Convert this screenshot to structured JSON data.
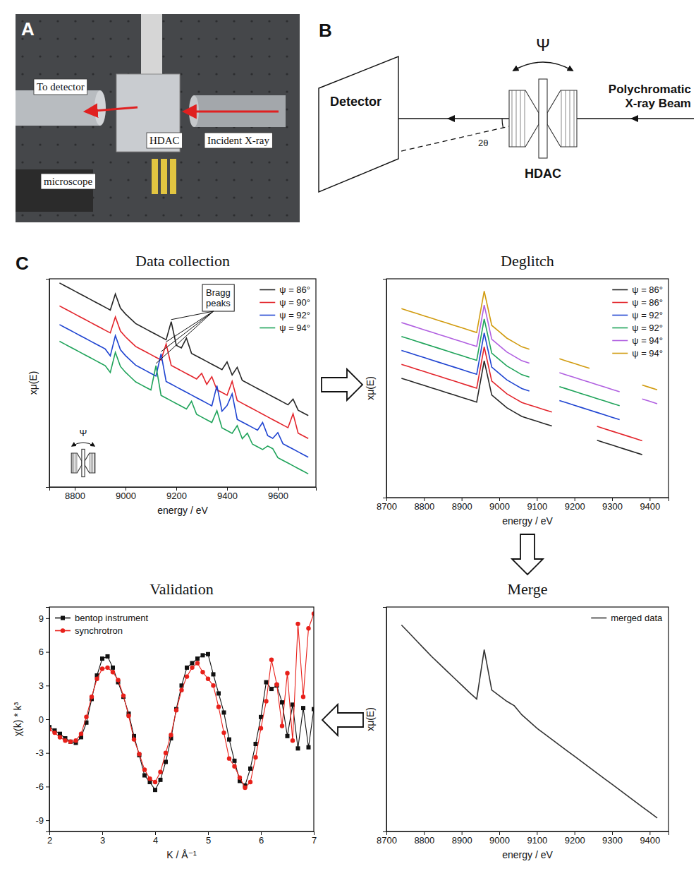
{
  "panel_a": {
    "letter": "A",
    "labels": [
      "To detector",
      "HDAC",
      "Incident X-ray",
      "microscope"
    ]
  },
  "panel_b": {
    "letter": "B",
    "detector": "Detector",
    "beam": "Polychromatic X-ray Beam",
    "cell": "HDAC",
    "rotation": "Ψ",
    "scattering_angle": "2θ"
  },
  "panel_c": {
    "letter": "C"
  },
  "chart_data": [
    {
      "type": "line",
      "title": "Data collection",
      "x_label": "energy / eV",
      "y_label": "xμ(E)",
      "x": [
        8740,
        8760,
        8780,
        8800,
        8820,
        8840,
        8860,
        8880,
        8900,
        8920,
        8940,
        8960,
        8980,
        9000,
        9020,
        9040,
        9060,
        9080,
        9100,
        9120,
        9140,
        9160,
        9180,
        9200,
        9220,
        9240,
        9260,
        9280,
        9300,
        9320,
        9340,
        9360,
        9380,
        9400,
        9420,
        9440,
        9460,
        9480,
        9500,
        9520,
        9540,
        9560,
        9580,
        9600,
        9620,
        9640,
        9660,
        9680,
        9700,
        9720
      ],
      "xlim": [
        8700,
        9750
      ],
      "xticks": [
        8800,
        9000,
        9200,
        9400,
        9600
      ],
      "ylim": [
        0,
        10
      ],
      "tick_labels": "x",
      "grid": false,
      "legend": "upper right",
      "annotations": [
        "Bragg peaks",
        "Ψ"
      ],
      "series": [
        {
          "name": "ψ = 86°",
          "color": "#262626",
          "values": [
            9.8,
            9.67,
            9.54,
            9.41,
            9.28,
            9.15,
            9.02,
            8.89,
            8.76,
            8.63,
            8.5,
            9.27,
            8.59,
            8.31,
            8.08,
            7.85,
            7.72,
            7.59,
            7.46,
            7.33,
            7.2,
            7.07,
            7.94,
            6.81,
            6.68,
            7.15,
            6.42,
            6.29,
            6.16,
            6.03,
            5.9,
            5.77,
            5.64,
            6.01,
            5.38,
            5.75,
            5.12,
            4.99,
            4.86,
            4.73,
            4.6,
            4.47,
            4.34,
            4.21,
            4.08,
            3.95,
            4.22,
            3.69,
            3.56,
            3.43
          ]
        },
        {
          "name": "ψ = 90°",
          "color": "#e3242b",
          "values": [
            8.7,
            8.57,
            8.44,
            8.31,
            8.18,
            8.05,
            7.92,
            7.79,
            7.66,
            7.53,
            7.4,
            8.17,
            7.49,
            7.21,
            6.98,
            6.75,
            6.62,
            6.49,
            6.36,
            6.23,
            6.1,
            6.87,
            5.84,
            5.71,
            5.58,
            5.45,
            5.32,
            5.19,
            5.46,
            4.93,
            5.3,
            4.67,
            4.54,
            4.41,
            5.08,
            4.15,
            4.02,
            3.89,
            3.76,
            3.63,
            3.5,
            3.37,
            3.24,
            3.11,
            2.98,
            2.85,
            3.52,
            2.59,
            2.46,
            2.33
          ]
        },
        {
          "name": "ψ = 92°",
          "color": "#1f44d1",
          "values": [
            7.8,
            7.67,
            7.54,
            7.41,
            7.28,
            7.15,
            7.02,
            6.89,
            6.76,
            6.63,
            6.3,
            7.27,
            6.59,
            6.31,
            6.08,
            5.85,
            5.72,
            5.59,
            5.46,
            5.33,
            6.4,
            5.07,
            4.94,
            4.81,
            4.68,
            4.55,
            4.42,
            4.29,
            4.16,
            4.03,
            3.9,
            4.87,
            3.64,
            3.91,
            4.48,
            3.25,
            3.12,
            2.99,
            2.86,
            2.73,
            3.1,
            2.47,
            2.34,
            2.61,
            2.08,
            1.95,
            1.82,
            1.69,
            1.56,
            1.43
          ]
        },
        {
          "name": "ψ = 94°",
          "color": "#1fa35a",
          "values": [
            7.0,
            6.87,
            6.74,
            6.61,
            6.48,
            6.35,
            6.22,
            6.09,
            5.96,
            5.83,
            5.5,
            6.47,
            5.79,
            5.51,
            5.28,
            5.05,
            4.92,
            4.79,
            4.66,
            5.83,
            4.4,
            4.27,
            4.14,
            4.01,
            3.88,
            3.75,
            4.12,
            3.49,
            3.36,
            3.23,
            3.1,
            3.67,
            2.84,
            2.71,
            2.58,
            2.95,
            2.32,
            2.59,
            2.06,
            1.93,
            1.8,
            1.97,
            1.84,
            1.41,
            1.28,
            1.15,
            1.02,
            0.89,
            0.76,
            0.63
          ]
        }
      ]
    },
    {
      "type": "line",
      "title": "Deglitch",
      "x_label": "energy / eV",
      "y_label": "xμ(E)",
      "x": [
        8740,
        8760,
        8780,
        8800,
        8820,
        8840,
        8860,
        8880,
        8900,
        8920,
        8940,
        8960,
        8980,
        9000,
        9020,
        9040,
        9060,
        9080,
        9100,
        9120,
        9140,
        9160,
        9180,
        9200,
        9220,
        9240,
        9260,
        9280,
        9300,
        9320,
        9340,
        9360,
        9380,
        9400,
        9420
      ],
      "xlim": [
        8700,
        9450
      ],
      "xticks": [
        8700,
        8800,
        8900,
        9000,
        9100,
        9200,
        9300,
        9400
      ],
      "ylim": [
        0,
        11
      ],
      "tick_labels": "x",
      "grid": false,
      "legend": "upper right",
      "series": [
        {
          "name": "ψ = 86°",
          "color": "#262626",
          "values": [
            6.0,
            5.88,
            5.76,
            5.64,
            5.52,
            5.4,
            5.28,
            5.16,
            5.04,
            4.92,
            4.8,
            6.88,
            5.16,
            4.84,
            4.52,
            4.3,
            4.08,
            3.96,
            3.84,
            3.72,
            3.6,
            null,
            null,
            null,
            null,
            null,
            2.88,
            2.76,
            2.64,
            2.52,
            2.4,
            2.28,
            2.16,
            null,
            null
          ]
        },
        {
          "name": "ψ = 86°",
          "color": "#e3242b",
          "values": [
            6.7,
            6.58,
            6.46,
            6.34,
            6.22,
            6.1,
            5.98,
            5.86,
            5.74,
            5.62,
            5.5,
            7.58,
            5.86,
            5.54,
            5.22,
            5.0,
            4.78,
            4.66,
            4.54,
            4.42,
            4.3,
            null,
            null,
            null,
            null,
            null,
            3.58,
            3.46,
            3.34,
            3.22,
            3.1,
            2.98,
            2.86,
            null,
            null
          ]
        },
        {
          "name": "ψ = 92°",
          "color": "#1f44d1",
          "values": [
            7.4,
            7.28,
            7.16,
            7.04,
            6.92,
            6.8,
            6.68,
            6.56,
            6.44,
            6.32,
            6.2,
            8.28,
            6.56,
            6.24,
            5.92,
            5.7,
            5.48,
            5.36,
            null,
            null,
            null,
            4.88,
            4.76,
            4.64,
            4.52,
            4.4,
            4.28,
            4.16,
            4.04,
            3.92,
            null,
            null,
            null,
            null,
            null
          ]
        },
        {
          "name": "ψ = 92°",
          "color": "#1fa35a",
          "values": [
            8.1,
            7.98,
            7.86,
            7.74,
            7.62,
            7.5,
            7.38,
            7.26,
            7.14,
            7.02,
            6.9,
            8.98,
            7.26,
            6.94,
            6.62,
            6.4,
            6.18,
            6.06,
            null,
            null,
            null,
            5.58,
            5.46,
            5.34,
            5.22,
            5.1,
            4.98,
            4.86,
            4.74,
            4.62,
            null,
            null,
            null,
            null,
            null
          ]
        },
        {
          "name": "ψ = 94°",
          "color": "#b05fe0",
          "values": [
            8.8,
            8.68,
            8.56,
            8.44,
            8.32,
            8.2,
            8.08,
            7.96,
            7.84,
            7.72,
            7.6,
            9.68,
            7.96,
            7.64,
            7.32,
            7.1,
            6.88,
            6.76,
            null,
            null,
            null,
            6.28,
            6.16,
            6.04,
            5.92,
            5.8,
            5.68,
            5.56,
            5.44,
            5.32,
            null,
            null,
            4.96,
            4.84,
            4.72
          ]
        },
        {
          "name": "ψ = 94°",
          "color": "#d19b0f",
          "values": [
            9.5,
            9.38,
            9.26,
            9.14,
            9.02,
            8.9,
            8.78,
            8.66,
            8.54,
            8.42,
            8.3,
            10.38,
            8.66,
            8.34,
            8.02,
            7.8,
            7.58,
            7.46,
            null,
            null,
            null,
            6.98,
            6.86,
            6.74,
            6.62,
            6.5,
            null,
            null,
            null,
            null,
            null,
            null,
            5.66,
            5.54,
            5.42
          ]
        }
      ]
    },
    {
      "type": "line",
      "title": "Merge",
      "x_label": "energy / eV",
      "y_label": "xμ(E)",
      "x": [
        8740,
        8760,
        8780,
        8800,
        8820,
        8840,
        8860,
        8880,
        8900,
        8920,
        8940,
        8960,
        8980,
        9000,
        9020,
        9040,
        9060,
        9080,
        9100,
        9120,
        9140,
        9160,
        9180,
        9200,
        9220,
        9240,
        9260,
        9280,
        9300,
        9320,
        9340,
        9360,
        9380,
        9400,
        9420
      ],
      "xlim": [
        8700,
        9450
      ],
      "xticks": [
        8700,
        8800,
        8900,
        9000,
        9100,
        9200,
        9300,
        9400
      ],
      "ylim": [
        0,
        10
      ],
      "tick_labels": "x",
      "grid": false,
      "legend": "upper right",
      "series": [
        {
          "name": "merged data",
          "color": "#333333",
          "values": [
            9.2,
            8.85,
            8.5,
            8.15,
            7.8,
            7.48,
            7.16,
            6.84,
            6.52,
            6.2,
            5.9,
            8.1,
            6.3,
            6.05,
            5.8,
            5.6,
            5.2,
            4.9,
            4.6,
            4.35,
            4.1,
            3.85,
            3.6,
            3.35,
            3.1,
            2.85,
            2.6,
            2.35,
            2.1,
            1.85,
            1.6,
            1.35,
            1.1,
            0.85,
            0.6
          ]
        }
      ]
    },
    {
      "type": "line",
      "title": "Validation",
      "x_label": "K / Å⁻¹",
      "y_label": "χ(k) * k³",
      "x": [
        2,
        2.1,
        2.2,
        2.3,
        2.4,
        2.5,
        2.6,
        2.7,
        2.8,
        2.9,
        3,
        3.1,
        3.2,
        3.3,
        3.4,
        3.5,
        3.6,
        3.7,
        3.8,
        3.9,
        4,
        4.1,
        4.2,
        4.3,
        4.4,
        4.5,
        4.6,
        4.7,
        4.8,
        4.9,
        5,
        5.1,
        5.2,
        5.3,
        5.4,
        5.5,
        5.6,
        5.7,
        5.8,
        5.9,
        6,
        6.1,
        6.2,
        6.3,
        6.4,
        6.5,
        6.6,
        6.7,
        6.8,
        6.9,
        7
      ],
      "xlim": [
        2,
        7
      ],
      "xticks": [
        2,
        3,
        4,
        5,
        6,
        7
      ],
      "ylim": [
        -10,
        10
      ],
      "yticks": [
        -9,
        -6,
        -3,
        0,
        3,
        6,
        9
      ],
      "grid": false,
      "legend": "upper left",
      "series": [
        {
          "name": "bentop instrument",
          "color": "#111111",
          "marker": "square",
          "values": [
            -0.7,
            -1.0,
            -1.3,
            -1.7,
            -2.0,
            -2.1,
            -1.6,
            -0.3,
            1.8,
            3.9,
            5.4,
            5.6,
            4.6,
            3.3,
            2.0,
            0.5,
            -1.5,
            -3.2,
            -5.0,
            -5.6,
            -6.3,
            -5.4,
            -3.8,
            -1.7,
            0.9,
            3.0,
            4.6,
            5.0,
            5.4,
            5.7,
            5.8,
            4.0,
            2.3,
            0.6,
            -1.8,
            -3.7,
            -5.5,
            -5.9,
            -4.4,
            -2.2,
            0.2,
            3.3,
            2.7,
            3.0,
            1.5,
            -1.5,
            1.3,
            -2.6,
            1.0,
            -2.5,
            0.9
          ]
        },
        {
          "name": "synchrotron",
          "color": "#e8201a",
          "marker": "circle",
          "values": [
            -0.9,
            -1.2,
            -1.6,
            -1.9,
            -2.0,
            -1.9,
            -1.3,
            0.2,
            2.0,
            3.6,
            4.5,
            4.6,
            4.2,
            3.5,
            2.1,
            0.3,
            -1.8,
            -3.1,
            -4.5,
            -5.3,
            -5.6,
            -4.7,
            -3.0,
            -1.4,
            0.8,
            2.6,
            3.8,
            4.6,
            5.0,
            4.2,
            3.6,
            3.0,
            1.1,
            -1.2,
            -3.5,
            -4.2,
            -5.2,
            -6.1,
            -5.6,
            -3.4,
            -0.8,
            1.6,
            5.3,
            3.1,
            -0.6,
            4.1,
            -1.9,
            8.5,
            2.0,
            8.1,
            9.4
          ]
        }
      ]
    }
  ]
}
